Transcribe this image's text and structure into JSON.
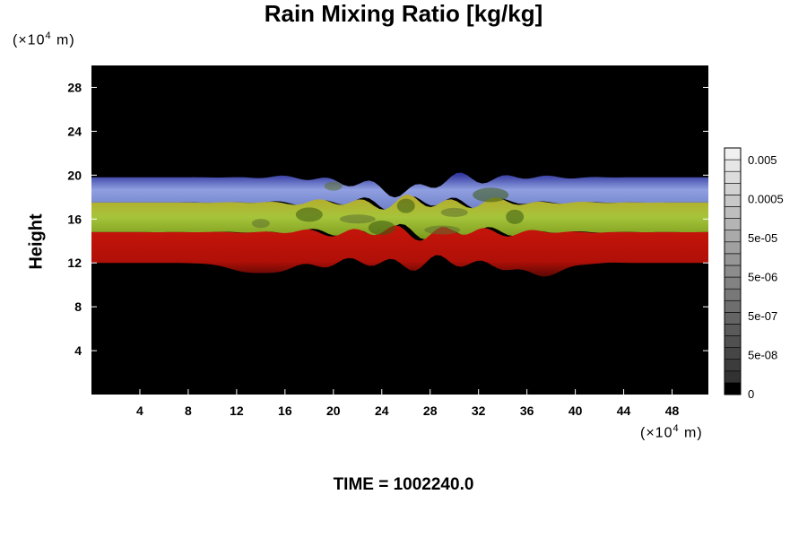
{
  "chart_data": {
    "type": "heatmap",
    "title": "Rain Mixing Ratio [kg/kg]",
    "ylabel": "Height",
    "xlabel": "",
    "y_unit": {
      "prefix": "(×10",
      "exp": "4",
      "suffix": " m)"
    },
    "x_unit": {
      "prefix": "(×10",
      "exp": "4",
      "suffix": " m)"
    },
    "xlim": [
      0,
      51
    ],
    "ylim": [
      0,
      30
    ],
    "xticks": [
      4,
      8,
      12,
      16,
      20,
      24,
      28,
      32,
      36,
      40,
      44,
      48
    ],
    "yticks": [
      4,
      8,
      12,
      16,
      20,
      24,
      28
    ],
    "colorbar": {
      "labels": [
        "0.005",
        "0.0005",
        "5e-05",
        "5e-06",
        "5e-07",
        "5e-08",
        "0"
      ],
      "levels": 21
    },
    "bands": [
      {
        "name": "blue",
        "color": "#7f8fd6",
        "bottom": 17.5,
        "top": 19.8
      },
      {
        "name": "green",
        "color": "#9bbf2a",
        "bottom": 14.8,
        "top": 17.5
      },
      {
        "name": "red",
        "color": "#c41a08",
        "bottom": 12.0,
        "top": 14.8
      }
    ]
  },
  "footer": {
    "time_label": "TIME = 1002240.0"
  }
}
